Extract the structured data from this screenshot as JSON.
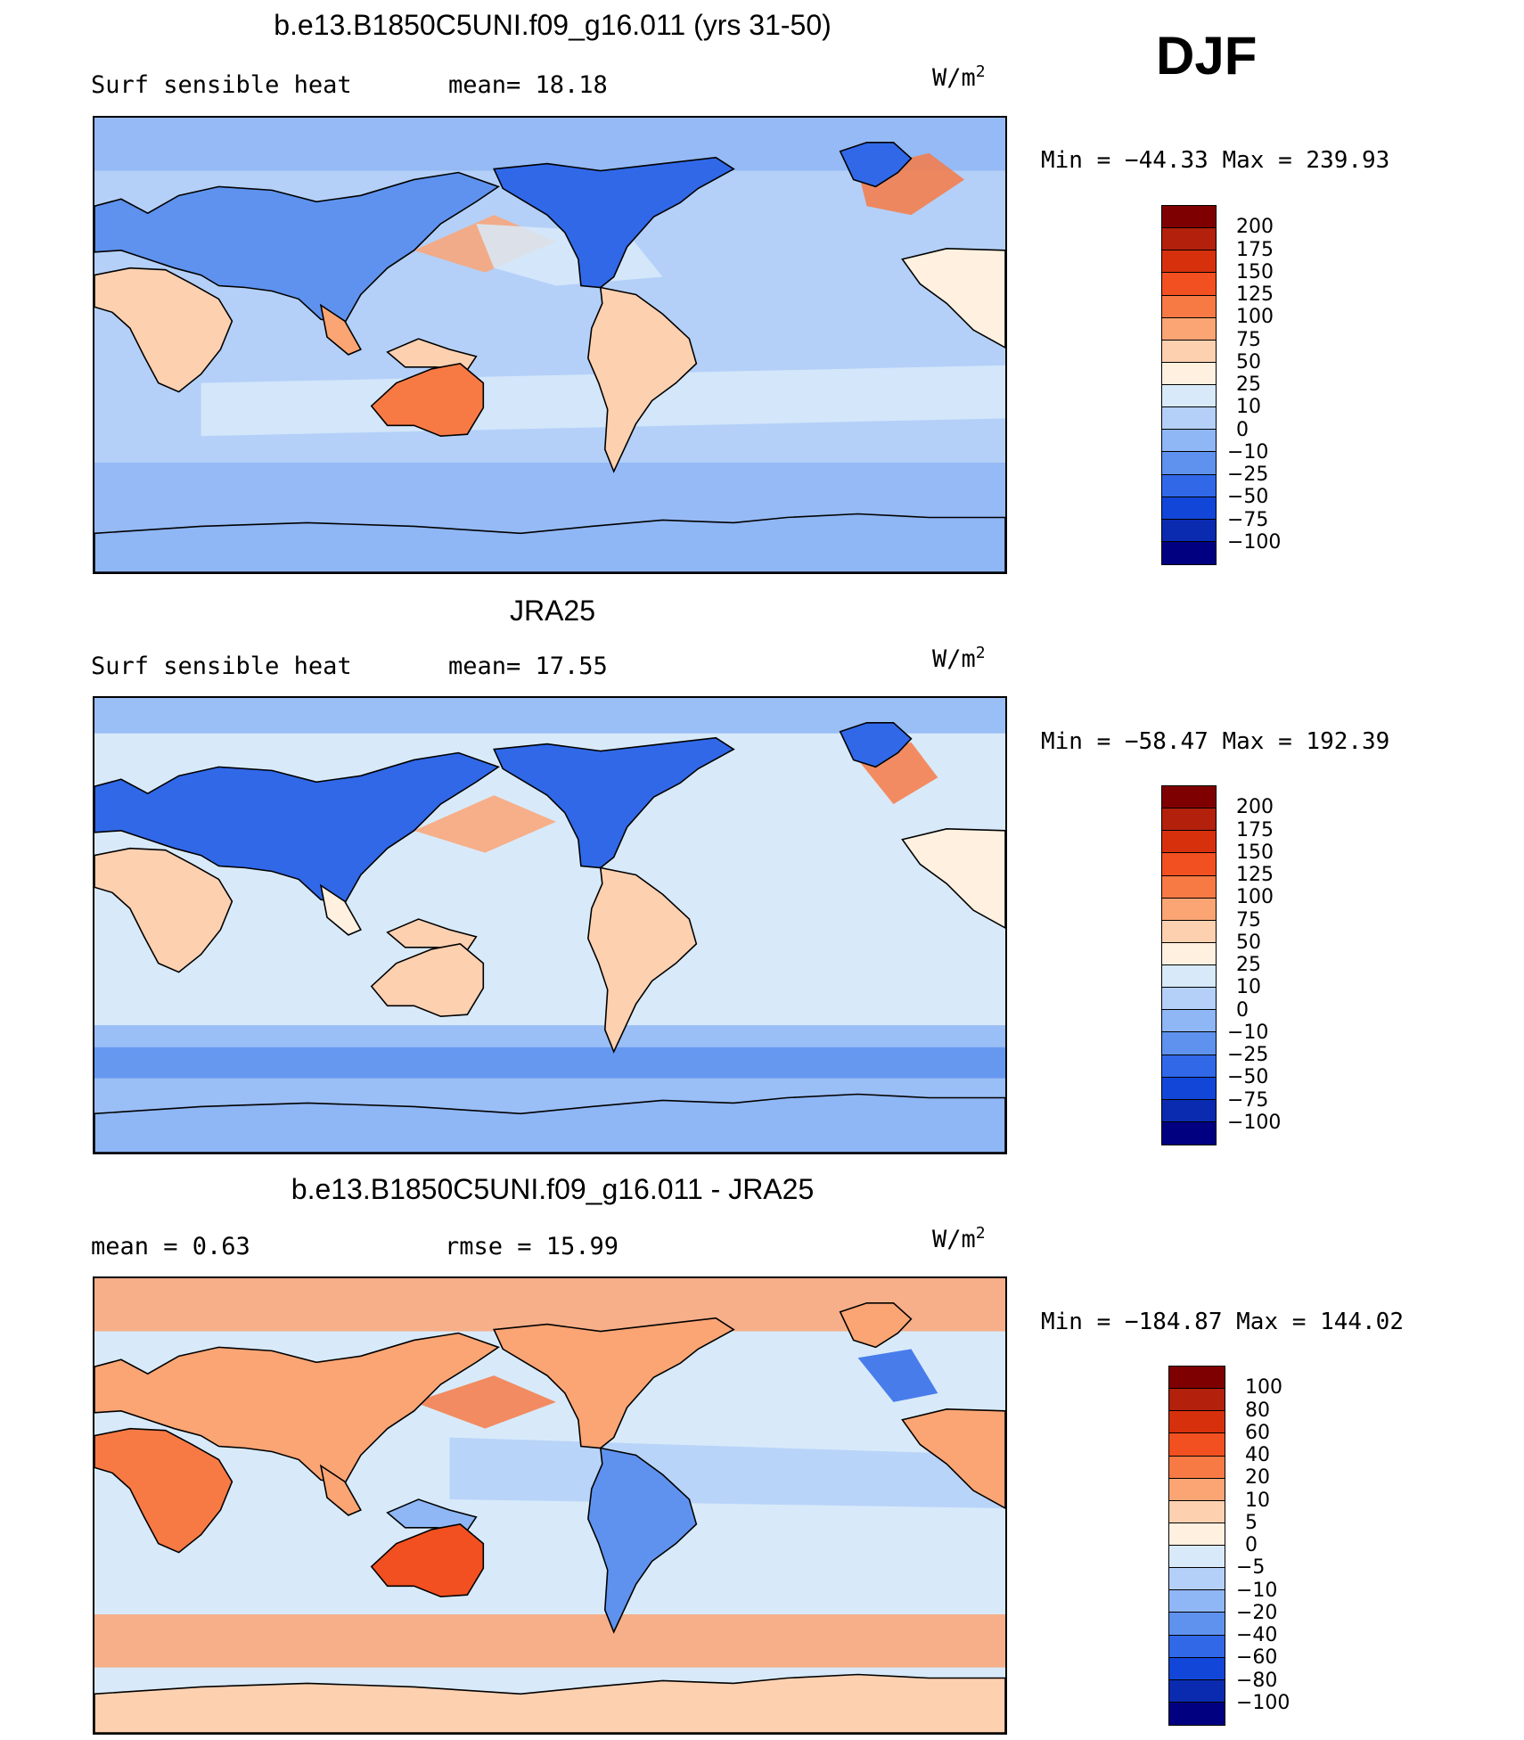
{
  "season": "DJF",
  "panels": [
    {
      "title": "b.e13.B1850C5UNI.f09_g16.011 (yrs 31-50)",
      "left_label": "Surf  sensible  heat",
      "mid_label": "mean=   18.18",
      "unit": "W/m",
      "unit_exp": "2",
      "minmax": "Min  =  −44.33  Max  =  239.93",
      "kind": "model",
      "colorbar": {
        "colors": [
          "#7f0000",
          "#b3200c",
          "#d7300c",
          "#f25020",
          "#f77a45",
          "#fba574",
          "#fdd0b0",
          "#fff0e0",
          "#d8eafa",
          "#b4d0f8",
          "#8fb6f5",
          "#5e92ee",
          "#3068e8",
          "#1246d8",
          "#0a2bb0",
          "#000080"
        ],
        "labels": [
          "200",
          "175",
          "150",
          "125",
          "100",
          "75",
          "50",
          "25",
          "10",
          "0",
          "−10",
          "−25",
          "−50",
          "−75",
          "−100"
        ]
      }
    },
    {
      "title": "JRA25",
      "left_label": "Surf  sensible  heat",
      "mid_label": "mean=   17.55",
      "unit": "W/m",
      "unit_exp": "2",
      "minmax": "Min  =  −58.47  Max  =  192.39",
      "kind": "obs",
      "colorbar": {
        "colors": [
          "#7f0000",
          "#b3200c",
          "#d7300c",
          "#f25020",
          "#f77a45",
          "#fba574",
          "#fdd0b0",
          "#fff0e0",
          "#d8eafa",
          "#b4d0f8",
          "#8fb6f5",
          "#5e92ee",
          "#3068e8",
          "#1246d8",
          "#0a2bb0",
          "#000080"
        ],
        "labels": [
          "200",
          "175",
          "150",
          "125",
          "100",
          "75",
          "50",
          "25",
          "10",
          "0",
          "−10",
          "−25",
          "−50",
          "−75",
          "−100"
        ]
      }
    },
    {
      "title": "b.e13.B1850C5UNI.f09_g16.011 - JRA25",
      "left_label": "mean  =     0.63",
      "mid_label": "rmse  =    15.99",
      "unit": "W/m",
      "unit_exp": "2",
      "minmax": "Min  =  −184.87  Max  =  144.02",
      "kind": "diff",
      "colorbar": {
        "colors": [
          "#7f0000",
          "#b3200c",
          "#d7300c",
          "#f25020",
          "#f77a45",
          "#fba574",
          "#fdd0b0",
          "#fff0e0",
          "#d8eafa",
          "#b4d0f8",
          "#8fb6f5",
          "#5e92ee",
          "#3068e8",
          "#1246d8",
          "#0a2bb0",
          "#000080"
        ],
        "labels": [
          "100",
          "80",
          "60",
          "40",
          "20",
          "10",
          "5",
          "0",
          "−5",
          "−10",
          "−20",
          "−40",
          "−60",
          "−80",
          "−100"
        ]
      }
    }
  ]
}
